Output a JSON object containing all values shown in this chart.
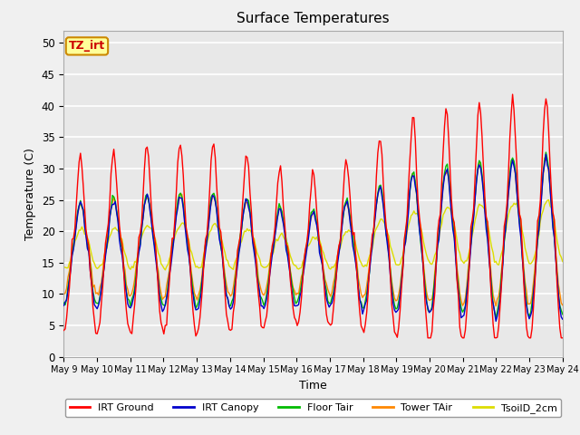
{
  "title": "Surface Temperatures",
  "xlabel": "Time",
  "ylabel": "Temperature (C)",
  "ylim": [
    0,
    52
  ],
  "background_color": "#e8e8e8",
  "grid_color": "#ffffff",
  "fig_bg": "#f0f0f0",
  "series": {
    "IRT_Ground": {
      "color": "#ff0000",
      "label": "IRT Ground"
    },
    "IRT_Canopy": {
      "color": "#0000cc",
      "label": "IRT Canopy"
    },
    "Floor_Tair": {
      "color": "#00bb00",
      "label": "Floor Tair"
    },
    "Tower_TAir": {
      "color": "#ff8800",
      "label": "Tower TAir"
    },
    "TsoilD_2cm": {
      "color": "#dddd00",
      "label": "TsoilD_2cm"
    }
  },
  "tick_labels": [
    "May 9",
    "May 10",
    "May 11",
    "May 12",
    "May 13",
    "May 14",
    "May 15",
    "May 16",
    "May 17",
    "May 18",
    "May 19",
    "May 20",
    "May 21",
    "May 22",
    "May 23",
    "May 24"
  ],
  "annotation_text": "TZ_irt",
  "annotation_bg": "#ffff99",
  "annotation_border": "#cc8800"
}
